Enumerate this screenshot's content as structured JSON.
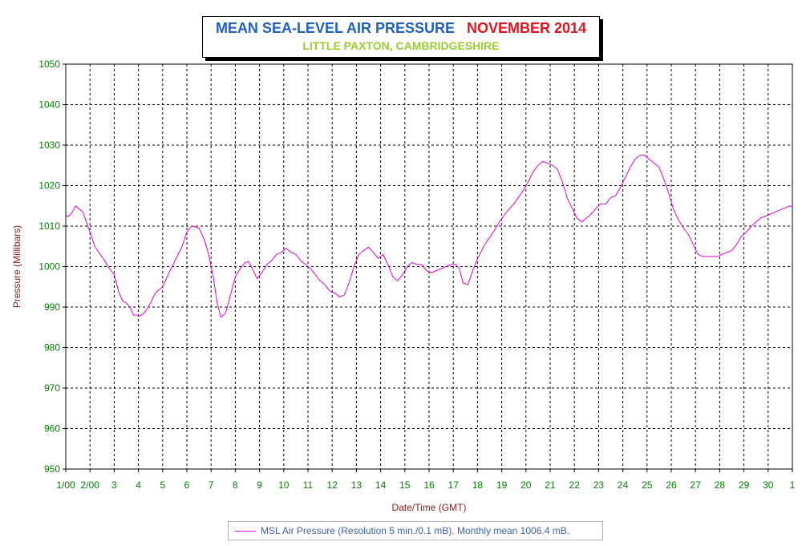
{
  "chart_data": {
    "type": "line",
    "title": "MEAN SEA-LEVEL AIR PRESSURE",
    "title_period": "NOVEMBER 2014",
    "subtitle": "LITTLE PAXTON, CAMBRIDGESHIRE",
    "xlabel": "Date/Time (GMT)",
    "ylabel": "Pressure (Millibars)",
    "ylim": [
      950,
      1050
    ],
    "xlim": [
      1,
      31
    ],
    "y_ticks": [
      "950",
      "960",
      "970",
      "980",
      "990",
      "1000",
      "1010",
      "1020",
      "1030",
      "1040",
      "1050"
    ],
    "x_ticks": [
      "1/00",
      "2/00",
      "3",
      "4",
      "5",
      "6",
      "7",
      "8",
      "9",
      "10",
      "11",
      "12",
      "13",
      "14",
      "15",
      "16",
      "17",
      "18",
      "19",
      "20",
      "21",
      "22",
      "23",
      "24",
      "25",
      "26",
      "27",
      "28",
      "29",
      "30",
      "1"
    ],
    "grid": true,
    "legend_position": "bottom-center",
    "colors": {
      "series": "#e000e0",
      "axis_text": "#008000",
      "ylabel": "#8b1a1a",
      "title": "#1f5fbf",
      "title_period": "#e0141e",
      "subtitle": "#9acd32",
      "legend_text": "#3d5fa8"
    },
    "series": [
      {
        "name": "MSL Air Pressure (Resolution 5 min./0.1 mB). Monthly mean 1006.4 mB.",
        "x": [
          1.0,
          1.1,
          1.25,
          1.4,
          1.55,
          1.7,
          1.85,
          2.0,
          2.2,
          2.4,
          2.6,
          2.8,
          3.0,
          3.2,
          3.35,
          3.5,
          3.65,
          3.8,
          3.95,
          4.1,
          4.3,
          4.5,
          4.7,
          5.0,
          5.3,
          5.6,
          5.8,
          6.0,
          6.2,
          6.35,
          6.5,
          6.7,
          6.9,
          7.1,
          7.25,
          7.4,
          7.6,
          7.8,
          8.0,
          8.2,
          8.4,
          8.55,
          8.7,
          8.9,
          9.1,
          9.3,
          9.5,
          9.7,
          9.9,
          10.1,
          10.3,
          10.5,
          10.7,
          10.9,
          11.1,
          11.3,
          11.5,
          11.7,
          11.9,
          12.1,
          12.3,
          12.5,
          12.7,
          12.9,
          13.1,
          13.3,
          13.5,
          13.7,
          13.9,
          14.1,
          14.3,
          14.5,
          14.7,
          14.9,
          15.1,
          15.3,
          15.5,
          15.7,
          15.9,
          16.1,
          16.3,
          16.5,
          16.7,
          16.9,
          17.1,
          17.25,
          17.4,
          17.6,
          17.8,
          18.0,
          18.3,
          18.6,
          18.9,
          19.2,
          19.5,
          19.8,
          20.1,
          20.3,
          20.5,
          20.7,
          20.9,
          21.1,
          21.3,
          21.5,
          21.7,
          21.9,
          22.1,
          22.3,
          22.5,
          22.7,
          22.9,
          23.1,
          23.3,
          23.5,
          23.7,
          23.9,
          24.1,
          24.3,
          24.5,
          24.7,
          24.9,
          25.1,
          25.3,
          25.5,
          25.7,
          25.9,
          26.1,
          26.3,
          26.5,
          26.7,
          26.9,
          27.1,
          27.3,
          27.5,
          27.7,
          27.9,
          28.1,
          28.3,
          28.5,
          28.7,
          28.9,
          29.1,
          29.3,
          29.5,
          29.7,
          29.9,
          30.1,
          30.3,
          30.5,
          30.7,
          30.9,
          31.0
        ],
        "values": [
          1012.6,
          1012.4,
          1013.2,
          1015.0,
          1014.2,
          1013.6,
          1011.0,
          1008.5,
          1005.0,
          1003.2,
          1001.5,
          999.5,
          998.0,
          993.5,
          991.5,
          991.0,
          990.0,
          988.0,
          988.0,
          987.8,
          989.0,
          991.0,
          993.5,
          995.0,
          999.0,
          1002.5,
          1005.0,
          1008.5,
          1010.0,
          1009.8,
          1009.5,
          1007.0,
          1003.0,
          997.0,
          991.0,
          987.5,
          988.5,
          993.0,
          997.5,
          999.5,
          1001.0,
          1001.2,
          999.5,
          997.0,
          998.5,
          1000.5,
          1001.5,
          1003.0,
          1003.5,
          1004.5,
          1003.5,
          1003.0,
          1001.5,
          1000.5,
          999.5,
          998.0,
          996.5,
          995.5,
          994.0,
          993.5,
          992.5,
          993.0,
          996.0,
          1000.0,
          1003.0,
          1004.0,
          1004.8,
          1003.5,
          1002.0,
          1003.0,
          1000.5,
          997.5,
          996.5,
          998.0,
          1000.0,
          1001.0,
          1000.5,
          1000.5,
          999.0,
          998.5,
          999.0,
          999.5,
          1000.0,
          1000.5,
          1000.5,
          999.5,
          996.0,
          995.5,
          999.0,
          1002.0,
          1005.5,
          1008.0,
          1011.0,
          1013.5,
          1015.5,
          1018.0,
          1021.0,
          1023.5,
          1025.0,
          1026.0,
          1025.5,
          1025.0,
          1024.0,
          1021.0,
          1017.0,
          1014.5,
          1012.0,
          1011.0,
          1012.0,
          1013.0,
          1014.5,
          1015.5,
          1015.5,
          1017.0,
          1017.5,
          1019.5,
          1022.0,
          1024.5,
          1026.5,
          1027.5,
          1027.5,
          1026.5,
          1025.5,
          1024.5,
          1021.5,
          1018.0,
          1014.0,
          1011.5,
          1009.5,
          1008.0,
          1005.5,
          1003.0,
          1002.5,
          1002.5,
          1002.5,
          1002.5,
          1003.0,
          1003.5,
          1004.0,
          1005.5,
          1007.5,
          1008.5,
          1010.0,
          1011.0,
          1012.0,
          1012.5,
          1013.0,
          1013.5,
          1014.0,
          1014.5,
          1015.0,
          1014.8
        ]
      }
    ]
  }
}
